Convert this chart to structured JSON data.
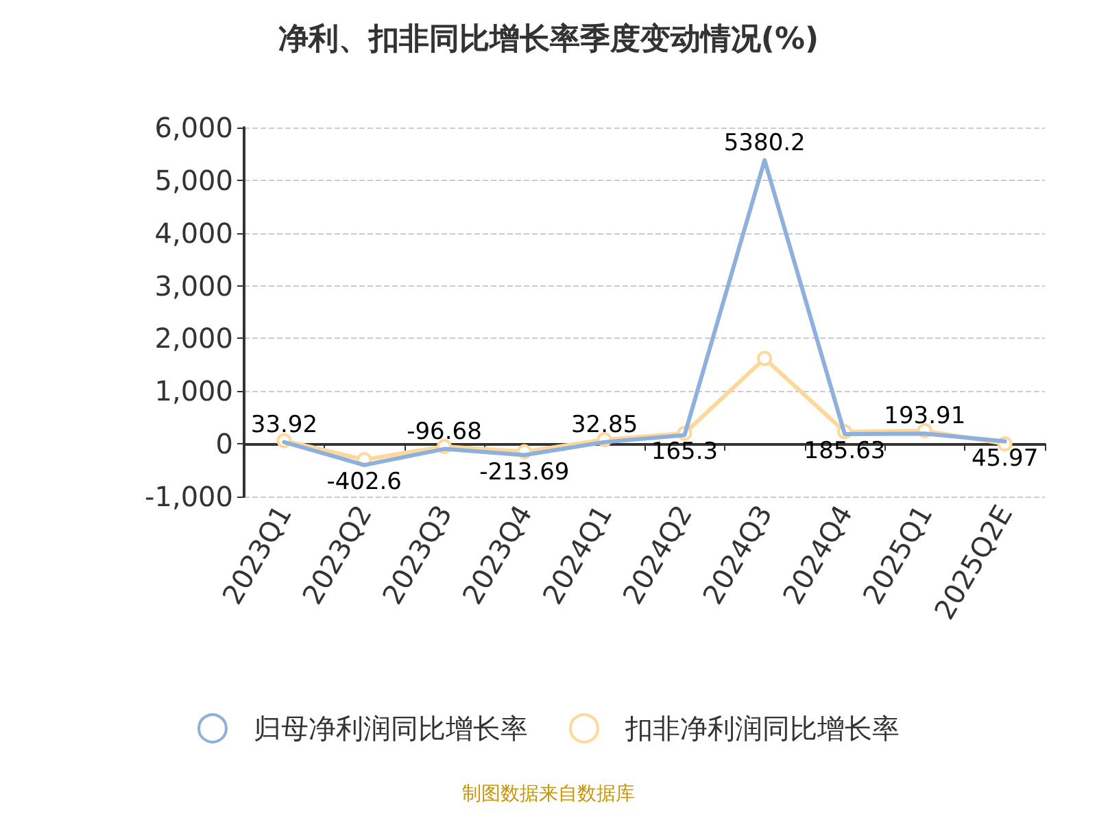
{
  "chart_data": {
    "type": "line",
    "title": "净利、扣非同比增长率季度变动情况(%)",
    "categories": [
      "2023Q1",
      "2023Q2",
      "2023Q3",
      "2023Q4",
      "2024Q1",
      "2024Q2",
      "2024Q3",
      "2024Q4",
      "2025Q1",
      "2025Q2E"
    ],
    "series": [
      {
        "name": "归母净利润同比增长率",
        "color": "#8eb0dc",
        "marker": "none",
        "values": [
          33.92,
          -402.6,
          -96.68,
          -213.69,
          32.85,
          165.3,
          5380.2,
          185.63,
          193.91,
          45.97
        ],
        "value_labels": [
          "33.92",
          "-402.6",
          "-96.68",
          "-213.69",
          "32.85",
          "165.3",
          "5380.2",
          "185.63",
          "193.91",
          "45.97"
        ]
      },
      {
        "name": "扣非净利润同比增长率",
        "color": "#fdd89a",
        "marker": "circle",
        "values": [
          60,
          -300,
          -50,
          -150,
          80,
          200,
          1620,
          230,
          250,
          0
        ]
      }
    ],
    "ylim": [
      -1000,
      6000
    ],
    "yticks": [
      {
        "value": -1000,
        "label": "-1,000"
      },
      0,
      {
        "value": 1000,
        "label": "1,000"
      },
      {
        "value": 2000,
        "label": "2,000"
      },
      {
        "value": 3000,
        "label": "3,000"
      },
      {
        "value": 4000,
        "label": "4,000"
      },
      {
        "value": 5000,
        "label": "5,000"
      },
      {
        "value": 6000,
        "label": "6,000"
      }
    ],
    "grid": "y",
    "legend": "bottom",
    "annotations": [
      "制图数据来自数据库"
    ]
  }
}
